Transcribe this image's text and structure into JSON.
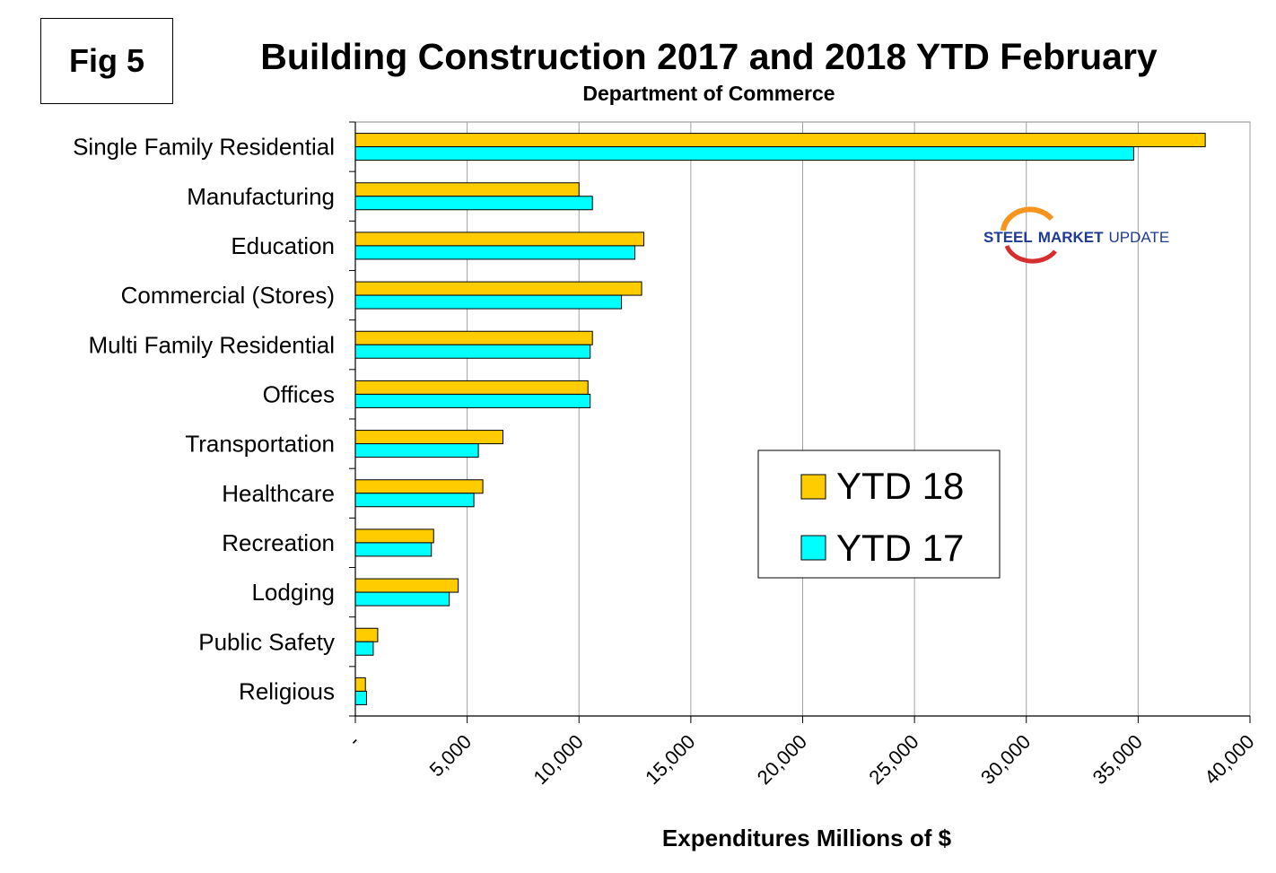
{
  "fig_label": "Fig 5",
  "chart_data": {
    "type": "bar",
    "orientation": "horizontal",
    "title": "Building Construction 2017 and 2018 YTD February",
    "subtitle": "Department of Commerce",
    "xlabel": "Expenditures Millions of $",
    "ylabel": "",
    "xlim": [
      0,
      40000
    ],
    "x_ticks": [
      0,
      5000,
      10000,
      15000,
      20000,
      25000,
      30000,
      35000,
      40000
    ],
    "x_tick_labels": [
      "-",
      "5,000",
      "10,000",
      "15,000",
      "20,000",
      "25,000",
      "30,000",
      "35,000",
      "40,000"
    ],
    "grid": "vertical",
    "legend_position": "center-right",
    "categories": [
      "Single Family Residential",
      "Manufacturing",
      "Education",
      "Commercial (Stores)",
      "Multi Family Residential",
      "Offices",
      "Transportation",
      "Healthcare",
      "Recreation",
      "Lodging",
      "Public Safety",
      "Religious"
    ],
    "series": [
      {
        "name": "YTD 18",
        "color": "#FFCC00",
        "values": [
          38000,
          10000,
          12900,
          12800,
          10600,
          10400,
          6600,
          5700,
          3500,
          4600,
          1000,
          450
        ]
      },
      {
        "name": "YTD 17",
        "color": "#00FFFF",
        "values": [
          34800,
          10600,
          12500,
          11900,
          10500,
          10500,
          5500,
          5300,
          3400,
          4200,
          800,
          500
        ]
      }
    ]
  },
  "logo": {
    "part1": "STEEL",
    "part2": "MARKET",
    "part3": "UPDATE"
  }
}
